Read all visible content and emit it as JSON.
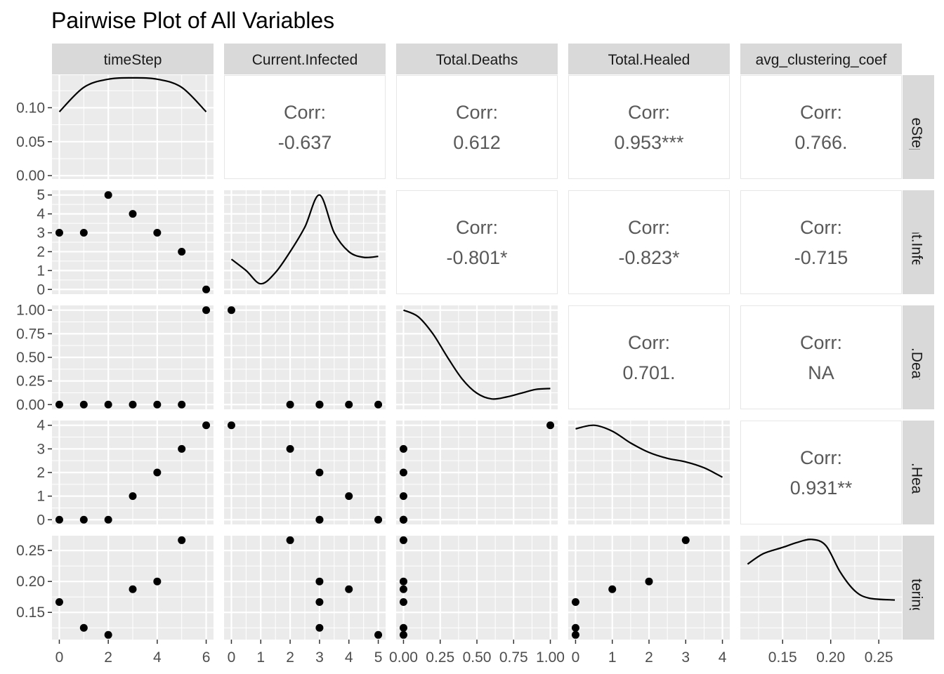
{
  "chart_data": {
    "type": "scatter",
    "subtype": "pairs-plot",
    "title": "Pairwise Plot of All Variables",
    "variables": [
      "timeStep",
      "Current.Infected",
      "Total.Deaths",
      "Total.Healed",
      "avg_clustering_coef"
    ],
    "row_strip_labels": [
      "timeStep",
      "Current.Infected",
      "Total.Deaths",
      "Total.Healed",
      "g_clustering_co"
    ],
    "observations": {
      "timeStep": [
        0,
        1,
        2,
        3,
        4,
        5,
        6
      ],
      "Current.Infected": [
        3,
        3,
        5,
        4,
        3,
        2,
        0
      ],
      "Total.Deaths": [
        0,
        0,
        0,
        0,
        0,
        0,
        1
      ],
      "Total.Healed": [
        0,
        0,
        0,
        1,
        2,
        3,
        4
      ],
      "avg_clustering_coef": [
        0.1667,
        0.125,
        0.1136,
        0.1875,
        0.2,
        0.2667,
        null
      ]
    },
    "axis_ranges": {
      "timeStep": [
        -0.3,
        6.3
      ],
      "Current.Infected": [
        -0.25,
        5.25
      ],
      "Total.Deaths": [
        -0.05,
        1.05
      ],
      "Total.Healed": [
        -0.2,
        4.2
      ],
      "avg_clustering_coef": [
        0.106,
        0.274
      ]
    },
    "ticks": {
      "timeStep": [
        0,
        2,
        4,
        6
      ],
      "Current.Infected": [
        0,
        1,
        2,
        3,
        4,
        5
      ],
      "Total.Deaths": [
        0,
        0.25,
        0.5,
        0.75,
        1
      ],
      "Total.Healed": [
        0,
        1,
        2,
        3,
        4
      ],
      "avg_clustering_coef": [
        0.15,
        0.2,
        0.25
      ]
    },
    "tick_labels": {
      "timeStep": [
        "0",
        "2",
        "4",
        "6"
      ],
      "Current.Infected": [
        "0",
        "1",
        "2",
        "3",
        "4",
        "5"
      ],
      "Total.Deaths": [
        "0.00",
        "0.25",
        "0.50",
        "0.75",
        "1.00"
      ],
      "Total.Healed": [
        "0",
        "1",
        "2",
        "3",
        "4"
      ],
      "avg_clustering_coef": [
        "0.15",
        "0.20",
        "0.25"
      ]
    },
    "y_ticks_row0": [
      0,
      0.05,
      0.1
    ],
    "y_tick_labels_row0": [
      "0.00",
      "0.05",
      "0.10"
    ],
    "y_range_row0": [
      -0.005,
      0.148
    ],
    "y_tick_labels": {
      "Current.Infected": [
        "0",
        "1",
        "2",
        "3",
        "4",
        "5"
      ],
      "Total.Deaths": [
        "0.00",
        "0.25",
        "0.50",
        "0.75",
        "1.00"
      ],
      "Total.Healed": [
        "0",
        "1",
        "2",
        "3",
        "4"
      ],
      "avg_clustering_coef": [
        "0.15",
        "0.20",
        "0.25"
      ]
    },
    "y_ticks": {
      "Current.Infected": [
        0,
        1,
        2,
        3,
        4,
        5
      ],
      "Total.Deaths": [
        0,
        0.25,
        0.5,
        0.75,
        1
      ],
      "Total.Healed": [
        0,
        1,
        2,
        3,
        4
      ],
      "avg_clustering_coef": [
        0.15,
        0.2,
        0.25
      ]
    },
    "densities": [
      {
        "variable": "timeStep",
        "x": [
          0,
          1,
          2,
          3,
          4,
          5,
          6
        ],
        "y": [
          0.094,
          0.13,
          0.142,
          0.144,
          0.142,
          0.13,
          0.094
        ]
      },
      {
        "variable": "Current.Infected",
        "x": [
          0,
          0.5,
          1,
          1.5,
          2,
          2.5,
          3,
          3.5,
          4,
          4.5,
          5
        ],
        "y": [
          1.6,
          1.0,
          0.3,
          0.9,
          2.0,
          3.3,
          5.0,
          3.0,
          2.0,
          1.7,
          1.75
        ]
      },
      {
        "variable": "Total.Deaths",
        "x": [
          0,
          0.1,
          0.2,
          0.3,
          0.4,
          0.5,
          0.6,
          0.7,
          0.8,
          0.9,
          1.0
        ],
        "y": [
          1.0,
          0.93,
          0.75,
          0.5,
          0.27,
          0.12,
          0.06,
          0.08,
          0.12,
          0.16,
          0.17
        ]
      },
      {
        "variable": "Total.Healed",
        "x": [
          0,
          0.5,
          1,
          1.5,
          2,
          2.5,
          3,
          3.5,
          4
        ],
        "y": [
          3.85,
          4.0,
          3.75,
          3.25,
          2.85,
          2.6,
          2.45,
          2.2,
          1.8
        ]
      },
      {
        "variable": "avg_clustering_coef",
        "x": [
          0.1136,
          0.13,
          0.15,
          0.165,
          0.18,
          0.195,
          0.21,
          0.225,
          0.24,
          0.2667
        ],
        "y": [
          0.228,
          0.245,
          0.255,
          0.263,
          0.268,
          0.258,
          0.215,
          0.185,
          0.173,
          0.17
        ]
      }
    ],
    "correlations": [
      {
        "row": 0,
        "col": 1,
        "label": "Corr:",
        "value": "-0.637"
      },
      {
        "row": 0,
        "col": 2,
        "label": "Corr:",
        "value": "0.612"
      },
      {
        "row": 0,
        "col": 3,
        "label": "Corr:",
        "value": "0.953***"
      },
      {
        "row": 0,
        "col": 4,
        "label": "Corr:",
        "value": "0.766."
      },
      {
        "row": 1,
        "col": 2,
        "label": "Corr:",
        "value": "-0.801*"
      },
      {
        "row": 1,
        "col": 3,
        "label": "Corr:",
        "value": "-0.823*"
      },
      {
        "row": 1,
        "col": 4,
        "label": "Corr:",
        "value": "-0.715"
      },
      {
        "row": 2,
        "col": 3,
        "label": "Corr:",
        "value": "0.701."
      },
      {
        "row": 2,
        "col": 4,
        "label": "Corr:",
        "value": "NA"
      },
      {
        "row": 3,
        "col": 4,
        "label": "Corr:",
        "value": "0.931**"
      }
    ],
    "colors": {
      "panel_bg": "#ebebeb",
      "grid": "#ffffff",
      "strip_bg": "#d9d9d9",
      "text_corr": "#595959",
      "points": "#000000",
      "lines": "#000000",
      "corr_border": "#e6e6e6"
    }
  }
}
